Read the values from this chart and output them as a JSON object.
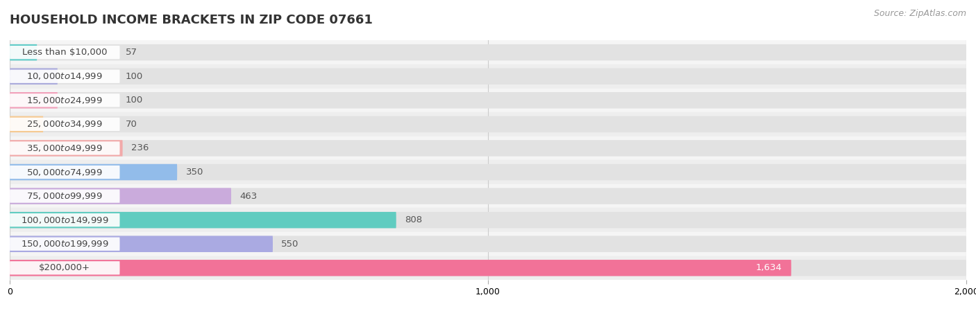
{
  "title": "HOUSEHOLD INCOME BRACKETS IN ZIP CODE 07661",
  "source": "Source: ZipAtlas.com",
  "categories": [
    "Less than $10,000",
    "$10,000 to $14,999",
    "$15,000 to $24,999",
    "$25,000 to $34,999",
    "$35,000 to $49,999",
    "$50,000 to $74,999",
    "$75,000 to $99,999",
    "$100,000 to $149,999",
    "$150,000 to $199,999",
    "$200,000+"
  ],
  "values": [
    57,
    100,
    100,
    70,
    236,
    350,
    463,
    808,
    550,
    1634
  ],
  "bar_colors": [
    "#60ccc8",
    "#aaaadc",
    "#f2a0ba",
    "#f6ca92",
    "#f2aaaa",
    "#92bcea",
    "#caabdc",
    "#60ccc0",
    "#aaaae2",
    "#f27298"
  ],
  "row_colors": [
    "#f5f5f5",
    "#eeeeee"
  ],
  "bg_bar_color": "#e2e2e2",
  "xlim": [
    0,
    2000
  ],
  "xticks": [
    0,
    1000,
    2000
  ],
  "title_fontsize": 13,
  "label_fontsize": 9.5,
  "value_fontsize": 9.5,
  "source_fontsize": 9
}
